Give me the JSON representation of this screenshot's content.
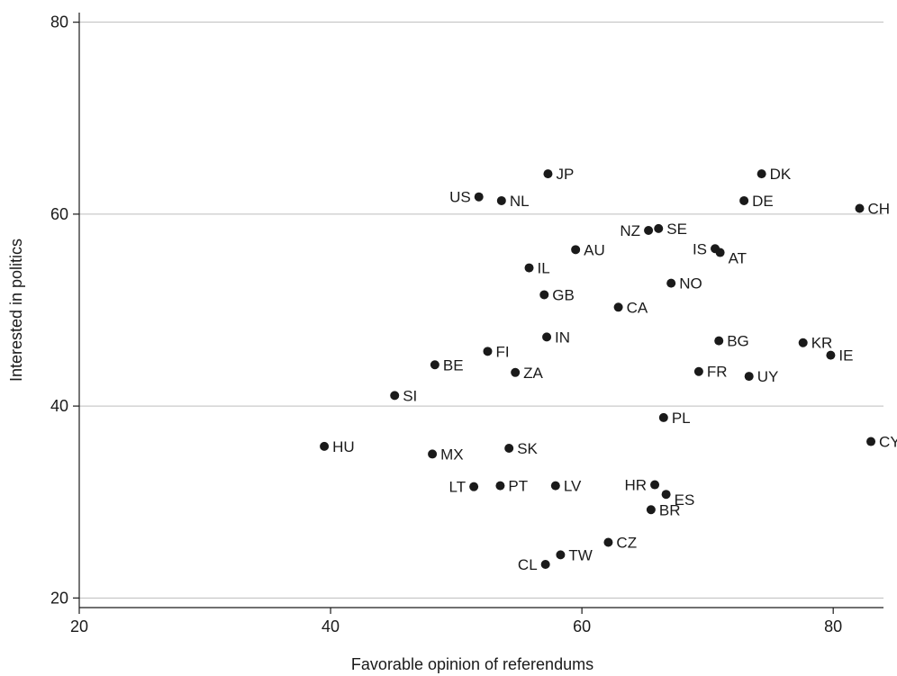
{
  "chart_data": {
    "type": "scatter",
    "xlabel": "Favorable opinion of referendums",
    "ylabel": "Interested in politics",
    "xlim": [
      20,
      84
    ],
    "ylim": [
      19,
      81
    ],
    "xticks": [
      20,
      40,
      60,
      80
    ],
    "yticks": [
      20,
      40,
      60,
      80
    ],
    "grid": "horizontal",
    "colors": {
      "point": "#1a1a1a",
      "grid": "#bdbdbd",
      "axis": "#1a1a1a"
    },
    "points": [
      {
        "label": "JP",
        "x": 57.3,
        "y": 64.2
      },
      {
        "label": "DK",
        "x": 74.3,
        "y": 64.2
      },
      {
        "label": "US",
        "x": 51.8,
        "y": 61.8
      },
      {
        "label": "NL",
        "x": 53.6,
        "y": 61.4
      },
      {
        "label": "DE",
        "x": 72.9,
        "y": 61.4
      },
      {
        "label": "CH",
        "x": 82.1,
        "y": 60.6
      },
      {
        "label": "NZ",
        "x": 65.3,
        "y": 58.3
      },
      {
        "label": "SE",
        "x": 66.1,
        "y": 58.5
      },
      {
        "label": "AU",
        "x": 59.5,
        "y": 56.3
      },
      {
        "label": "IS",
        "x": 70.6,
        "y": 56.4
      },
      {
        "label": "AT",
        "x": 71.0,
        "y": 56.0
      },
      {
        "label": "IL",
        "x": 55.8,
        "y": 54.4
      },
      {
        "label": "NO",
        "x": 67.1,
        "y": 52.8
      },
      {
        "label": "GB",
        "x": 57.0,
        "y": 51.6
      },
      {
        "label": "CA",
        "x": 62.9,
        "y": 50.3
      },
      {
        "label": "IN",
        "x": 57.2,
        "y": 47.2
      },
      {
        "label": "BG",
        "x": 70.9,
        "y": 46.8
      },
      {
        "label": "KR",
        "x": 77.6,
        "y": 46.6
      },
      {
        "label": "FI",
        "x": 52.5,
        "y": 45.7
      },
      {
        "label": "IE",
        "x": 79.8,
        "y": 45.3
      },
      {
        "label": "BE",
        "x": 48.3,
        "y": 44.3
      },
      {
        "label": "ZA",
        "x": 54.7,
        "y": 43.5
      },
      {
        "label": "FR",
        "x": 69.3,
        "y": 43.6
      },
      {
        "label": "UY",
        "x": 73.3,
        "y": 43.1
      },
      {
        "label": "SI",
        "x": 45.1,
        "y": 41.1
      },
      {
        "label": "PL",
        "x": 66.5,
        "y": 38.8
      },
      {
        "label": "CY",
        "x": 83.0,
        "y": 36.3
      },
      {
        "label": "HU",
        "x": 39.5,
        "y": 35.8
      },
      {
        "label": "SK",
        "x": 54.2,
        "y": 35.6
      },
      {
        "label": "MX",
        "x": 48.1,
        "y": 35.0
      },
      {
        "label": "LT",
        "x": 51.4,
        "y": 31.6
      },
      {
        "label": "PT",
        "x": 53.5,
        "y": 31.7
      },
      {
        "label": "LV",
        "x": 57.9,
        "y": 31.7
      },
      {
        "label": "HR",
        "x": 65.8,
        "y": 31.8
      },
      {
        "label": "ES",
        "x": 66.7,
        "y": 30.8
      },
      {
        "label": "BR",
        "x": 65.5,
        "y": 29.2
      },
      {
        "label": "CZ",
        "x": 62.1,
        "y": 25.8
      },
      {
        "label": "TW",
        "x": 58.3,
        "y": 24.5
      },
      {
        "label": "CL",
        "x": 57.1,
        "y": 23.5
      }
    ]
  }
}
